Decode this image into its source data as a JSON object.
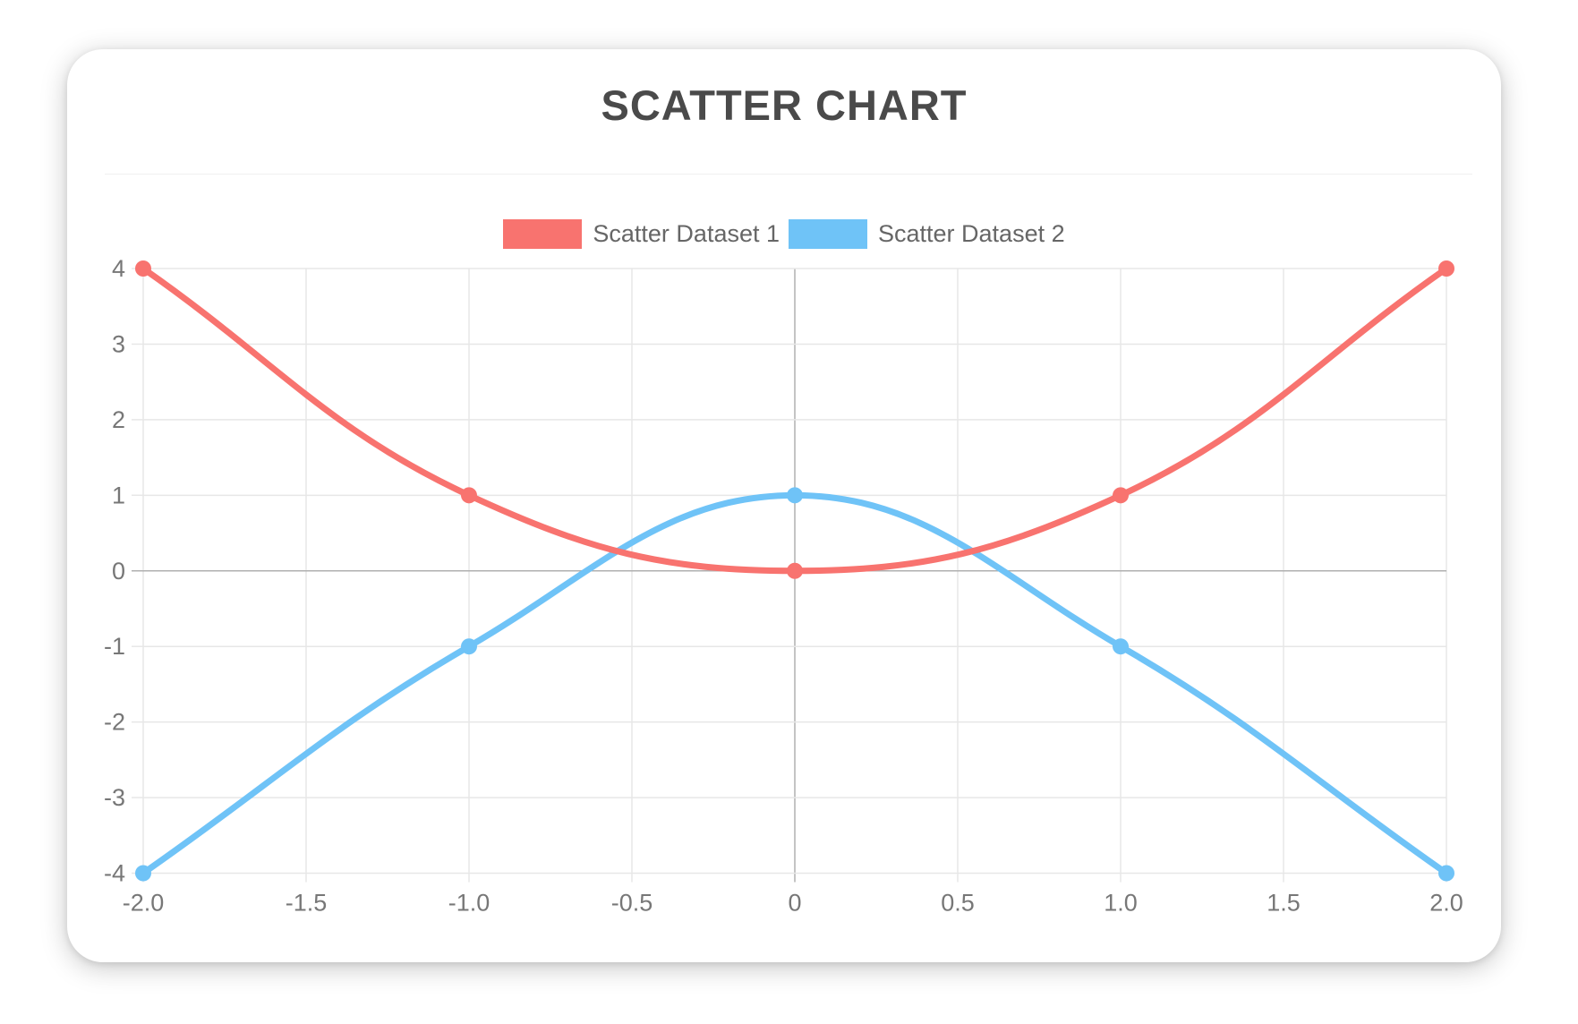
{
  "chart_data": {
    "type": "scatter",
    "title": "SCATTER CHART",
    "xlabel": "",
    "ylabel": "",
    "xlim": [
      -2,
      2
    ],
    "ylim": [
      -4,
      4
    ],
    "grid": true,
    "legend_position": "top",
    "line_tension": 0.4,
    "x_ticks": [
      "-2.0",
      "-1.5",
      "-1.0",
      "-0.5",
      "0",
      "0.5",
      "1.0",
      "1.5",
      "2.0"
    ],
    "x_tick_values": [
      -2,
      -1.5,
      -1,
      -0.5,
      0,
      0.5,
      1,
      1.5,
      2
    ],
    "y_ticks": [
      "4",
      "3",
      "2",
      "1",
      "0",
      "-1",
      "-2",
      "-3",
      "-4"
    ],
    "y_tick_values": [
      4,
      3,
      2,
      1,
      0,
      -1,
      -2,
      -3,
      -4
    ],
    "colors": {
      "grid_line": "#e7e7e7",
      "zero_line": "#b0b0b0",
      "tick_label": "#777777",
      "title_text": "#4a4a4a",
      "legend_text": "#666666"
    },
    "series": [
      {
        "name": "Scatter Dataset 1",
        "color": "#f8736f",
        "points": [
          {
            "x": -2,
            "y": 4
          },
          {
            "x": -1,
            "y": 1
          },
          {
            "x": 0,
            "y": 0
          },
          {
            "x": 1,
            "y": 1
          },
          {
            "x": 2,
            "y": 4
          }
        ]
      },
      {
        "name": "Scatter Dataset 2",
        "color": "#6fc3f7",
        "points": [
          {
            "x": -2,
            "y": -4
          },
          {
            "x": -1,
            "y": -1
          },
          {
            "x": 0,
            "y": 1
          },
          {
            "x": 1,
            "y": -1
          },
          {
            "x": 2,
            "y": -4
          }
        ]
      }
    ]
  }
}
